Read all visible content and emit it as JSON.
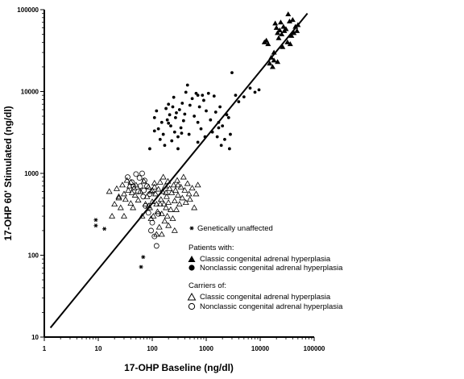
{
  "chart_data": {
    "type": "scatter",
    "xlabel": "17-OHP Baseline (ng/dl)",
    "ylabel": "17-OHP 60' Stimulated (ng/dl)",
    "xscale": "log",
    "yscale": "log",
    "xlim": [
      1,
      100000
    ],
    "ylim": [
      10,
      100000
    ],
    "x_ticks": [
      "1",
      "10",
      "100",
      "1000",
      "10000",
      "100000"
    ],
    "y_ticks": [
      "10",
      "100",
      "1000",
      "10000",
      "100000"
    ],
    "grid": false,
    "legend_position": "bottom-right",
    "legend": {
      "unaffected_label": "Genetically unaffected",
      "patients_heading": "Patients with:",
      "carriers_heading": "Carriers of:",
      "classic_label": "Classic congenital adrenal hyperplasia",
      "nonclassic_label": "Nonclassic congenital adrenal hyperplasia"
    },
    "line": {
      "name": "",
      "x": [
        1.3,
        75000
      ],
      "y": [
        13,
        90000
      ]
    },
    "series": [
      {
        "key": "unaffected",
        "marker": "asterisk",
        "points": [
          [
            9,
            270
          ],
          [
            9,
            230
          ],
          [
            13,
            210
          ],
          [
            68,
            95
          ],
          [
            62,
            72
          ]
        ]
      },
      {
        "key": "patients_classic",
        "marker": "filled-triangle",
        "points": [
          [
            12000,
            40000
          ],
          [
            13000,
            42000
          ],
          [
            14000,
            38000
          ],
          [
            15000,
            22000
          ],
          [
            16000,
            26000
          ],
          [
            17000,
            20000
          ],
          [
            18000,
            24000
          ],
          [
            19000,
            68000
          ],
          [
            20000,
            60000
          ],
          [
            21000,
            52000
          ],
          [
            22000,
            45000
          ],
          [
            23000,
            56000
          ],
          [
            24000,
            70000
          ],
          [
            25000,
            50000
          ],
          [
            26000,
            35000
          ],
          [
            27000,
            62000
          ],
          [
            28000,
            55000
          ],
          [
            30000,
            58000
          ],
          [
            32000,
            40000
          ],
          [
            33000,
            88000
          ],
          [
            35000,
            72000
          ],
          [
            36000,
            38000
          ],
          [
            38000,
            48000
          ],
          [
            40000,
            75000
          ],
          [
            42000,
            52000
          ],
          [
            45000,
            62000
          ],
          [
            48000,
            55000
          ],
          [
            50000,
            65000
          ],
          [
            21000,
            23000
          ],
          [
            18000,
            30000
          ]
        ]
      },
      {
        "key": "patients_nonclassic",
        "marker": "filled-circle",
        "points": [
          [
            90,
            2000
          ],
          [
            110,
            4800
          ],
          [
            120,
            5800
          ],
          [
            130,
            3500
          ],
          [
            140,
            2600
          ],
          [
            150,
            4200
          ],
          [
            160,
            3000
          ],
          [
            170,
            2200
          ],
          [
            180,
            6200
          ],
          [
            190,
            4500
          ],
          [
            200,
            7000
          ],
          [
            210,
            5200
          ],
          [
            220,
            3800
          ],
          [
            230,
            2500
          ],
          [
            240,
            6500
          ],
          [
            250,
            8500
          ],
          [
            260,
            3200
          ],
          [
            270,
            4800
          ],
          [
            280,
            5500
          ],
          [
            300,
            2800
          ],
          [
            320,
            6000
          ],
          [
            340,
            3600
          ],
          [
            360,
            7200
          ],
          [
            380,
            4400
          ],
          [
            400,
            5300
          ],
          [
            420,
            9800
          ],
          [
            450,
            12000
          ],
          [
            480,
            3000
          ],
          [
            500,
            6800
          ],
          [
            550,
            8200
          ],
          [
            600,
            5000
          ],
          [
            650,
            9500
          ],
          [
            700,
            4200
          ],
          [
            750,
            6500
          ],
          [
            800,
            3500
          ],
          [
            850,
            9000
          ],
          [
            900,
            7800
          ],
          [
            950,
            2800
          ],
          [
            1000,
            5800
          ],
          [
            1100,
            9500
          ],
          [
            1200,
            4500
          ],
          [
            1300,
            3200
          ],
          [
            1400,
            8800
          ],
          [
            1500,
            5600
          ],
          [
            1600,
            2800
          ],
          [
            1700,
            4200
          ],
          [
            1800,
            6500
          ],
          [
            1900,
            2200
          ],
          [
            2000,
            3800
          ],
          [
            2200,
            2600
          ],
          [
            2400,
            5200
          ],
          [
            2600,
            4800
          ],
          [
            2800,
            3000
          ],
          [
            3000,
            17000
          ],
          [
            3500,
            9000
          ],
          [
            4000,
            7500
          ],
          [
            5000,
            8600
          ],
          [
            6500,
            11000
          ],
          [
            8000,
            9800
          ],
          [
            9500,
            10500
          ],
          [
            110,
            3300
          ],
          [
            200,
            4100
          ],
          [
            350,
            3100
          ],
          [
            700,
            9000
          ],
          [
            1700,
            3600
          ],
          [
            2700,
            2000
          ],
          [
            700,
            2400
          ],
          [
            300,
            2000
          ]
        ]
      },
      {
        "key": "carriers_classic",
        "marker": "open-triangle",
        "points": [
          [
            18,
            300
          ],
          [
            20,
            420
          ],
          [
            22,
            650
          ],
          [
            24,
            500
          ],
          [
            26,
            380
          ],
          [
            28,
            720
          ],
          [
            30,
            560
          ],
          [
            32,
            480
          ],
          [
            34,
            820
          ],
          [
            36,
            620
          ],
          [
            38,
            700
          ],
          [
            40,
            430
          ],
          [
            42,
            580
          ],
          [
            44,
            380
          ],
          [
            46,
            660
          ],
          [
            48,
            540
          ],
          [
            50,
            720
          ],
          [
            55,
            470
          ],
          [
            60,
            600
          ],
          [
            65,
            300
          ],
          [
            70,
            800
          ],
          [
            75,
            420
          ],
          [
            80,
            520
          ],
          [
            85,
            680
          ],
          [
            90,
            380
          ],
          [
            95,
            600
          ],
          [
            100,
            450
          ],
          [
            105,
            300
          ],
          [
            110,
            760
          ],
          [
            115,
            560
          ],
          [
            120,
            420
          ],
          [
            125,
            340
          ],
          [
            130,
            640
          ],
          [
            135,
            220
          ],
          [
            140,
            780
          ],
          [
            145,
            480
          ],
          [
            150,
            320
          ],
          [
            155,
            600
          ],
          [
            160,
            900
          ],
          [
            165,
            420
          ],
          [
            170,
            260
          ],
          [
            175,
            700
          ],
          [
            180,
            380
          ],
          [
            185,
            520
          ],
          [
            190,
            300
          ],
          [
            195,
            800
          ],
          [
            200,
            440
          ],
          [
            210,
            650
          ],
          [
            220,
            360
          ],
          [
            230,
            580
          ],
          [
            240,
            280
          ],
          [
            250,
            720
          ],
          [
            260,
            460
          ],
          [
            270,
            620
          ],
          [
            280,
            360
          ],
          [
            290,
            820
          ],
          [
            300,
            540
          ],
          [
            320,
            420
          ],
          [
            340,
            680
          ],
          [
            360,
            500
          ],
          [
            380,
            900
          ],
          [
            400,
            620
          ],
          [
            420,
            440
          ],
          [
            450,
            750
          ],
          [
            480,
            560
          ],
          [
            500,
            480
          ],
          [
            550,
            660
          ],
          [
            600,
            380
          ],
          [
            650,
            560
          ],
          [
            700,
            720
          ],
          [
            24,
            520
          ],
          [
            30,
            300
          ],
          [
            40,
            780
          ],
          [
            120,
            180
          ],
          [
            150,
            180
          ],
          [
            200,
            230
          ],
          [
            260,
            200
          ],
          [
            100,
            620
          ],
          [
            110,
            680
          ],
          [
            85,
            400
          ],
          [
            95,
            280
          ],
          [
            180,
            580
          ],
          [
            300,
            720
          ],
          [
            140,
            420
          ],
          [
            16,
            600
          ]
        ]
      },
      {
        "key": "carriers_nonclassic",
        "marker": "open-circle",
        "points": [
          [
            35,
            900
          ],
          [
            42,
            780
          ],
          [
            50,
            980
          ],
          [
            58,
            880
          ],
          [
            65,
            1000
          ],
          [
            72,
            820
          ],
          [
            80,
            700
          ],
          [
            55,
            600
          ],
          [
            68,
            520
          ],
          [
            75,
            400
          ],
          [
            85,
            330
          ],
          [
            95,
            200
          ],
          [
            110,
            170
          ],
          [
            120,
            130
          ],
          [
            100,
            250
          ],
          [
            90,
            560
          ],
          [
            60,
            700
          ],
          [
            45,
            690
          ],
          [
            130,
            320
          ],
          [
            70,
            620
          ]
        ]
      }
    ]
  }
}
